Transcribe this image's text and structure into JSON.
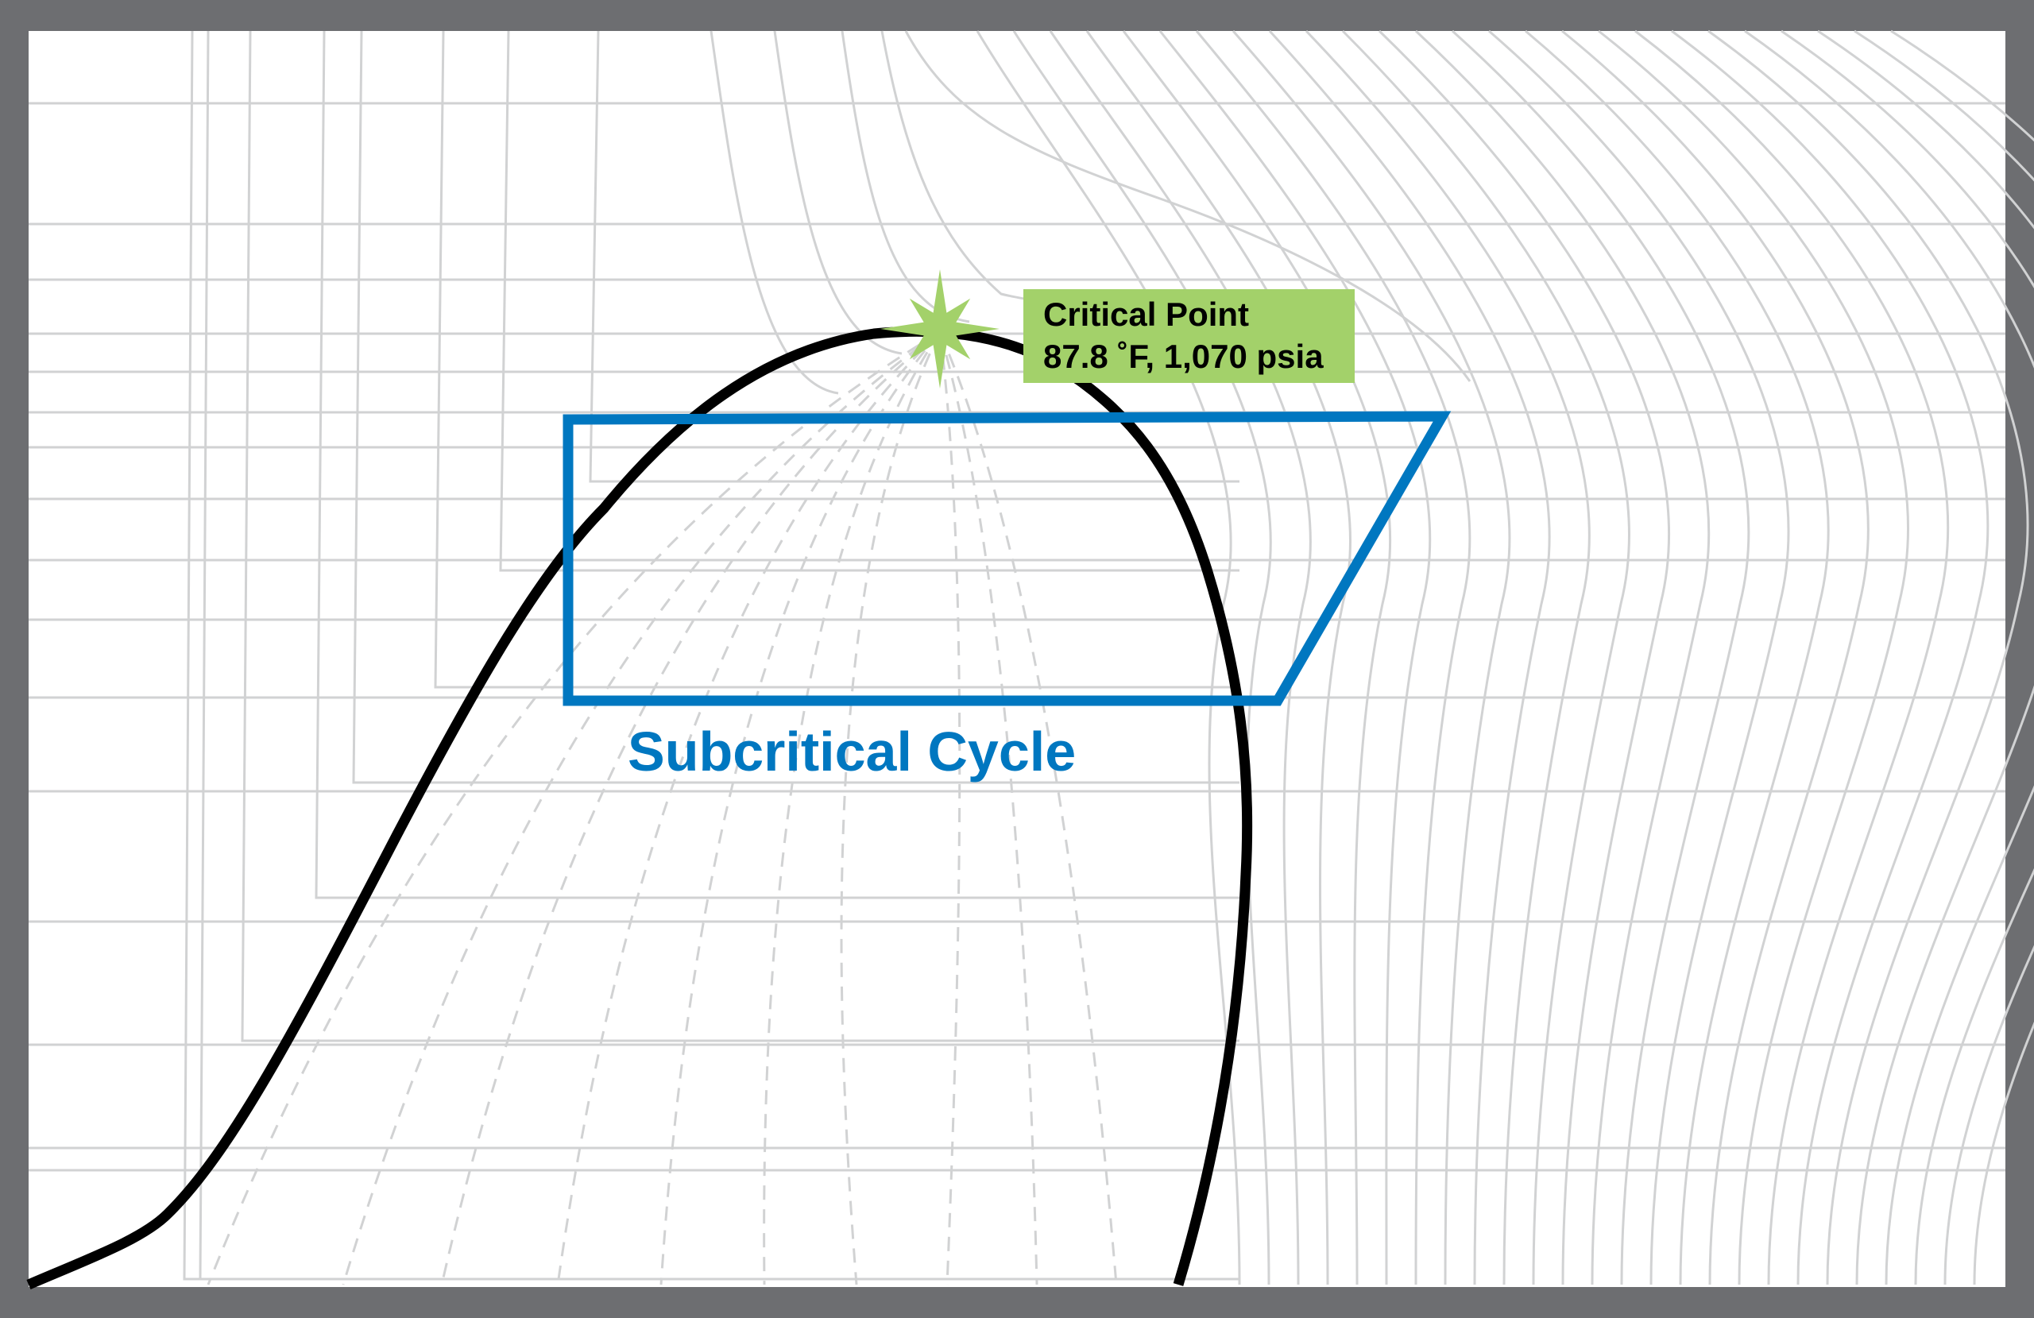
{
  "critical_point": {
    "title": "Critical Point",
    "value": "87.8 ˚F, 1,070 psia",
    "color": "#a3d16a"
  },
  "cycle": {
    "label": "Subcritical Cycle",
    "color": "#0077c0"
  },
  "colors": {
    "frame": "#6d6e71",
    "grid": "#d1d2d3",
    "dome": "#000000"
  }
}
